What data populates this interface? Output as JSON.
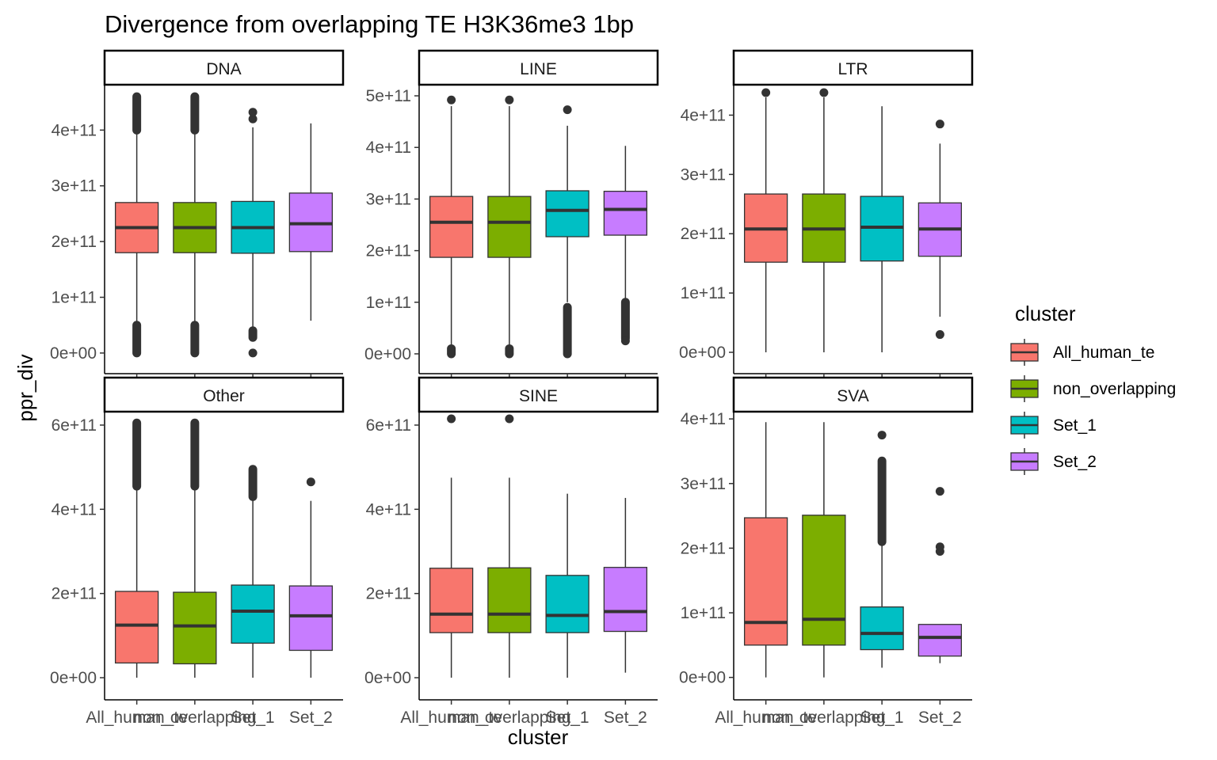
{
  "chart_data": {
    "type": "boxplot",
    "title": "Divergence from overlapping TE H3K36me3 1bp",
    "xlabel": "cluster",
    "ylabel": "ppr_div",
    "categories": [
      "All_human_te",
      "non_overlapping",
      "Set_1",
      "Set_2"
    ],
    "legend": {
      "title": "cluster",
      "position": "right",
      "entries": [
        {
          "label": "All_human_te",
          "color": "#F8766D"
        },
        {
          "label": "non_overlapping",
          "color": "#7CAE00"
        },
        {
          "label": "Set_1",
          "color": "#00BFC4"
        },
        {
          "label": "Set_2",
          "color": "#C77CFF"
        }
      ]
    },
    "panels": [
      {
        "name": "DNA",
        "ylim": [
          -20000000000.0,
          480000000000.0
        ],
        "yticks": [
          {
            "value": 0,
            "label": "0e+00"
          },
          {
            "value": 100000000000.0,
            "label": "1e+11"
          },
          {
            "value": 200000000000.0,
            "label": "2e+11"
          },
          {
            "value": 300000000000.0,
            "label": "3e+11"
          },
          {
            "value": 400000000000.0,
            "label": "4e+11"
          }
        ],
        "boxes": [
          {
            "cluster": "All_human_te",
            "whisker_low": 50000000000.0,
            "q1": 180000000000.0,
            "median": 225000000000.0,
            "q3": 270000000000.0,
            "whisker_high": 400000000000.0,
            "outlier_bands": [
              [
                0,
                50000000000.0
              ],
              [
                400000000000.0,
                460000000000.0
              ]
            ],
            "outliers": []
          },
          {
            "cluster": "non_overlapping",
            "whisker_low": 50000000000.0,
            "q1": 180000000000.0,
            "median": 225000000000.0,
            "q3": 270000000000.0,
            "whisker_high": 400000000000.0,
            "outlier_bands": [
              [
                0,
                50000000000.0
              ],
              [
                400000000000.0,
                460000000000.0
              ]
            ],
            "outliers": []
          },
          {
            "cluster": "Set_1",
            "whisker_low": 45000000000.0,
            "q1": 179000000000.0,
            "median": 225000000000.0,
            "q3": 272000000000.0,
            "whisker_high": 405000000000.0,
            "outlier_bands": [
              [
                28000000000.0,
                40000000000.0
              ]
            ],
            "outliers": [
              0,
              420000000000.0,
              432000000000.0
            ]
          },
          {
            "cluster": "Set_2",
            "whisker_low": 58000000000.0,
            "q1": 182000000000.0,
            "median": 232000000000.0,
            "q3": 287000000000.0,
            "whisker_high": 412000000000.0,
            "outlier_bands": [],
            "outliers": []
          }
        ]
      },
      {
        "name": "LINE",
        "ylim": [
          -20000000000.0,
          520000000000.0
        ],
        "yticks": [
          {
            "value": 0,
            "label": "0e+00"
          },
          {
            "value": 100000000000.0,
            "label": "1e+11"
          },
          {
            "value": 200000000000.0,
            "label": "2e+11"
          },
          {
            "value": 300000000000.0,
            "label": "3e+11"
          },
          {
            "value": 400000000000.0,
            "label": "4e+11"
          },
          {
            "value": 500000000000.0,
            "label": "5e+11"
          }
        ],
        "boxes": [
          {
            "cluster": "All_human_te",
            "whisker_low": 12000000000.0,
            "q1": 187000000000.0,
            "median": 255000000000.0,
            "q3": 305000000000.0,
            "whisker_high": 480000000000.0,
            "outlier_bands": [
              [
                0,
                10000000000.0
              ]
            ],
            "outliers": [
              492000000000.0
            ]
          },
          {
            "cluster": "non_overlapping",
            "whisker_low": 12000000000.0,
            "q1": 187000000000.0,
            "median": 255000000000.0,
            "q3": 305000000000.0,
            "whisker_high": 480000000000.0,
            "outlier_bands": [
              [
                0,
                10000000000.0
              ]
            ],
            "outliers": [
              492000000000.0
            ]
          },
          {
            "cluster": "Set_1",
            "whisker_low": 100000000000.0,
            "q1": 227000000000.0,
            "median": 278000000000.0,
            "q3": 316000000000.0,
            "whisker_high": 442000000000.0,
            "outlier_bands": [
              [
                0,
                90000000000.0
              ]
            ],
            "outliers": [
              473000000000.0
            ]
          },
          {
            "cluster": "Set_2",
            "whisker_low": 105000000000.0,
            "q1": 230000000000.0,
            "median": 280000000000.0,
            "q3": 315000000000.0,
            "whisker_high": 403000000000.0,
            "outlier_bands": [
              [
                30000000000.0,
                100000000000.0
              ]
            ],
            "outliers": [
              25000000000.0
            ]
          }
        ]
      },
      {
        "name": "LTR",
        "ylim": [
          -20000000000.0,
          450000000000.0
        ],
        "yticks": [
          {
            "value": 0,
            "label": "0e+00"
          },
          {
            "value": 100000000000.0,
            "label": "1e+11"
          },
          {
            "value": 200000000000.0,
            "label": "2e+11"
          },
          {
            "value": 300000000000.0,
            "label": "3e+11"
          },
          {
            "value": 400000000000.0,
            "label": "4e+11"
          }
        ],
        "boxes": [
          {
            "cluster": "All_human_te",
            "whisker_low": 0,
            "q1": 152000000000.0,
            "median": 208000000000.0,
            "q3": 267000000000.0,
            "whisker_high": 430000000000.0,
            "outlier_bands": [],
            "outliers": [
              438000000000.0
            ]
          },
          {
            "cluster": "non_overlapping",
            "whisker_low": 0,
            "q1": 152000000000.0,
            "median": 208000000000.0,
            "q3": 267000000000.0,
            "whisker_high": 430000000000.0,
            "outlier_bands": [],
            "outliers": [
              438000000000.0
            ]
          },
          {
            "cluster": "Set_1",
            "whisker_low": 0,
            "q1": 154000000000.0,
            "median": 211000000000.0,
            "q3": 263000000000.0,
            "whisker_high": 415000000000.0,
            "outlier_bands": [],
            "outliers": []
          },
          {
            "cluster": "Set_2",
            "whisker_low": 60000000000.0,
            "q1": 162000000000.0,
            "median": 208000000000.0,
            "q3": 252000000000.0,
            "whisker_high": 352000000000.0,
            "outlier_bands": [],
            "outliers": [
              30000000000.0,
              385000000000.0
            ]
          }
        ]
      },
      {
        "name": "Other",
        "ylim": [
          -30000000000.0,
          630000000000.0
        ],
        "yticks": [
          {
            "value": 0,
            "label": "0e+00"
          },
          {
            "value": 200000000000.0,
            "label": "2e+11"
          },
          {
            "value": 400000000000.0,
            "label": "4e+11"
          },
          {
            "value": 600000000000.0,
            "label": "6e+11"
          }
        ],
        "boxes": [
          {
            "cluster": "All_human_te",
            "whisker_low": 0,
            "q1": 35000000000.0,
            "median": 125000000000.0,
            "q3": 205000000000.0,
            "whisker_high": 450000000000.0,
            "outlier_bands": [
              [
                455000000000.0,
                605000000000.0
              ]
            ],
            "outliers": []
          },
          {
            "cluster": "non_overlapping",
            "whisker_low": 0,
            "q1": 33000000000.0,
            "median": 123000000000.0,
            "q3": 203000000000.0,
            "whisker_high": 450000000000.0,
            "outlier_bands": [
              [
                455000000000.0,
                605000000000.0
              ]
            ],
            "outliers": []
          },
          {
            "cluster": "Set_1",
            "whisker_low": 0,
            "q1": 82000000000.0,
            "median": 158000000000.0,
            "q3": 220000000000.0,
            "whisker_high": 422000000000.0,
            "outlier_bands": [
              [
                430000000000.0,
                495000000000.0
              ]
            ],
            "outliers": []
          },
          {
            "cluster": "Set_2",
            "whisker_low": 0,
            "q1": 65000000000.0,
            "median": 147000000000.0,
            "q3": 218000000000.0,
            "whisker_high": 420000000000.0,
            "outlier_bands": [],
            "outliers": [
              465000000000.0
            ]
          }
        ]
      },
      {
        "name": "SINE",
        "ylim": [
          -30000000000.0,
          630000000000.0
        ],
        "yticks": [
          {
            "value": 0,
            "label": "0e+00"
          },
          {
            "value": 200000000000.0,
            "label": "2e+11"
          },
          {
            "value": 400000000000.0,
            "label": "4e+11"
          },
          {
            "value": 600000000000.0,
            "label": "6e+11"
          }
        ],
        "boxes": [
          {
            "cluster": "All_human_te",
            "whisker_low": 0,
            "q1": 107000000000.0,
            "median": 151000000000.0,
            "q3": 260000000000.0,
            "whisker_high": 475000000000.0,
            "outlier_bands": [],
            "outliers": [
              615000000000.0
            ]
          },
          {
            "cluster": "non_overlapping",
            "whisker_low": 0,
            "q1": 107000000000.0,
            "median": 151000000000.0,
            "q3": 261000000000.0,
            "whisker_high": 475000000000.0,
            "outlier_bands": [],
            "outliers": [
              615000000000.0
            ]
          },
          {
            "cluster": "Set_1",
            "whisker_low": 0,
            "q1": 107000000000.0,
            "median": 148000000000.0,
            "q3": 243000000000.0,
            "whisker_high": 437000000000.0,
            "outlier_bands": [],
            "outliers": []
          },
          {
            "cluster": "Set_2",
            "whisker_low": 12000000000.0,
            "q1": 110000000000.0,
            "median": 157000000000.0,
            "q3": 262000000000.0,
            "whisker_high": 427000000000.0,
            "outlier_bands": [],
            "outliers": []
          }
        ]
      },
      {
        "name": "SVA",
        "ylim": [
          -20000000000.0,
          410000000000.0
        ],
        "yticks": [
          {
            "value": 0,
            "label": "0e+00"
          },
          {
            "value": 100000000000.0,
            "label": "1e+11"
          },
          {
            "value": 200000000000.0,
            "label": "2e+11"
          },
          {
            "value": 300000000000.0,
            "label": "3e+11"
          },
          {
            "value": 400000000000.0,
            "label": "4e+11"
          }
        ],
        "boxes": [
          {
            "cluster": "All_human_te",
            "whisker_low": 0,
            "q1": 50000000000.0,
            "median": 85000000000.0,
            "q3": 247000000000.0,
            "whisker_high": 395000000000.0,
            "outlier_bands": [],
            "outliers": []
          },
          {
            "cluster": "non_overlapping",
            "whisker_low": 0,
            "q1": 50000000000.0,
            "median": 90000000000.0,
            "q3": 251000000000.0,
            "whisker_high": 395000000000.0,
            "outlier_bands": [],
            "outliers": []
          },
          {
            "cluster": "Set_1",
            "whisker_low": 15000000000.0,
            "q1": 43000000000.0,
            "median": 68000000000.0,
            "q3": 109000000000.0,
            "whisker_high": 205000000000.0,
            "outlier_bands": [
              [
                210000000000.0,
                335000000000.0
              ]
            ],
            "outliers": [
              375000000000.0
            ]
          },
          {
            "cluster": "Set_2",
            "whisker_low": 22000000000.0,
            "q1": 33000000000.0,
            "median": 62000000000.0,
            "q3": 82000000000.0,
            "whisker_high": 82000000000.0,
            "outlier_bands": [],
            "outliers": [
              195000000000.0,
              202000000000.0,
              288000000000.0
            ]
          }
        ]
      }
    ]
  }
}
